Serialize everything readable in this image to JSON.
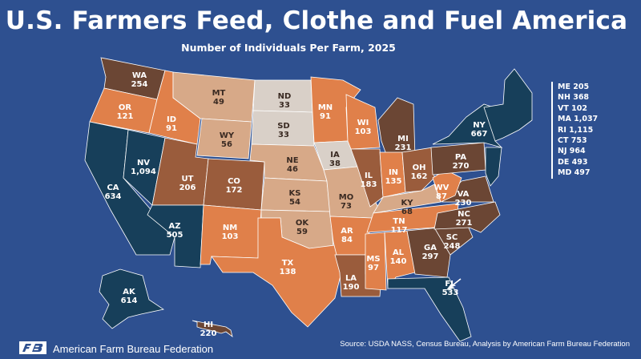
{
  "title": "U.S. Farmers Feed, Clothe and Fuel America",
  "subtitle": "Number of Individuals Per Farm, 2025",
  "colors": {
    "background": "#2e5090",
    "lowest": "#d9d0c8",
    "low": "#d7a988",
    "mid": "#e0804a",
    "high": "#9a5c3c",
    "very_high": "#6b4634",
    "highest": "#173f5a"
  },
  "states": [
    {
      "abbr": "WA",
      "value": "254"
    },
    {
      "abbr": "OR",
      "value": "121"
    },
    {
      "abbr": "CA",
      "value": "634"
    },
    {
      "abbr": "NV",
      "value": "1,094"
    },
    {
      "abbr": "ID",
      "value": "91"
    },
    {
      "abbr": "MT",
      "value": "49"
    },
    {
      "abbr": "WY",
      "value": "56"
    },
    {
      "abbr": "UT",
      "value": "206"
    },
    {
      "abbr": "AZ",
      "value": "505"
    },
    {
      "abbr": "CO",
      "value": "172"
    },
    {
      "abbr": "NM",
      "value": "103"
    },
    {
      "abbr": "ND",
      "value": "33"
    },
    {
      "abbr": "SD",
      "value": "33"
    },
    {
      "abbr": "NE",
      "value": "46"
    },
    {
      "abbr": "KS",
      "value": "54"
    },
    {
      "abbr": "OK",
      "value": "59"
    },
    {
      "abbr": "TX",
      "value": "138"
    },
    {
      "abbr": "MN",
      "value": "91"
    },
    {
      "abbr": "IA",
      "value": "38"
    },
    {
      "abbr": "MO",
      "value": "73"
    },
    {
      "abbr": "AR",
      "value": "84"
    },
    {
      "abbr": "LA",
      "value": "190"
    },
    {
      "abbr": "WI",
      "value": "103"
    },
    {
      "abbr": "IL",
      "value": "183"
    },
    {
      "abbr": "MI",
      "value": "231"
    },
    {
      "abbr": "IN",
      "value": "135"
    },
    {
      "abbr": "OH",
      "value": "162"
    },
    {
      "abbr": "KY",
      "value": "68"
    },
    {
      "abbr": "TN",
      "value": "117"
    },
    {
      "abbr": "MS",
      "value": "97"
    },
    {
      "abbr": "AL",
      "value": "140"
    },
    {
      "abbr": "GA",
      "value": "297"
    },
    {
      "abbr": "FL",
      "value": "533"
    },
    {
      "abbr": "SC",
      "value": "248"
    },
    {
      "abbr": "NC",
      "value": "271"
    },
    {
      "abbr": "VA",
      "value": "230"
    },
    {
      "abbr": "WV",
      "value": "87"
    },
    {
      "abbr": "PA",
      "value": "270"
    },
    {
      "abbr": "NY",
      "value": "667"
    },
    {
      "abbr": "AK",
      "value": "614"
    },
    {
      "abbr": "HI",
      "value": "220"
    }
  ],
  "northeast_list": [
    "ME 205",
    "NH 368",
    "VT 102",
    "MA 1,037",
    "RI 1,115",
    "CT 753",
    "NJ 964",
    "DE 493",
    "MD 497"
  ],
  "footer": {
    "organization": "American Farm Bureau Federation",
    "source": "Source: USDA NASS, Census Bureau, Analysis by American Farm Bureau Federation"
  }
}
